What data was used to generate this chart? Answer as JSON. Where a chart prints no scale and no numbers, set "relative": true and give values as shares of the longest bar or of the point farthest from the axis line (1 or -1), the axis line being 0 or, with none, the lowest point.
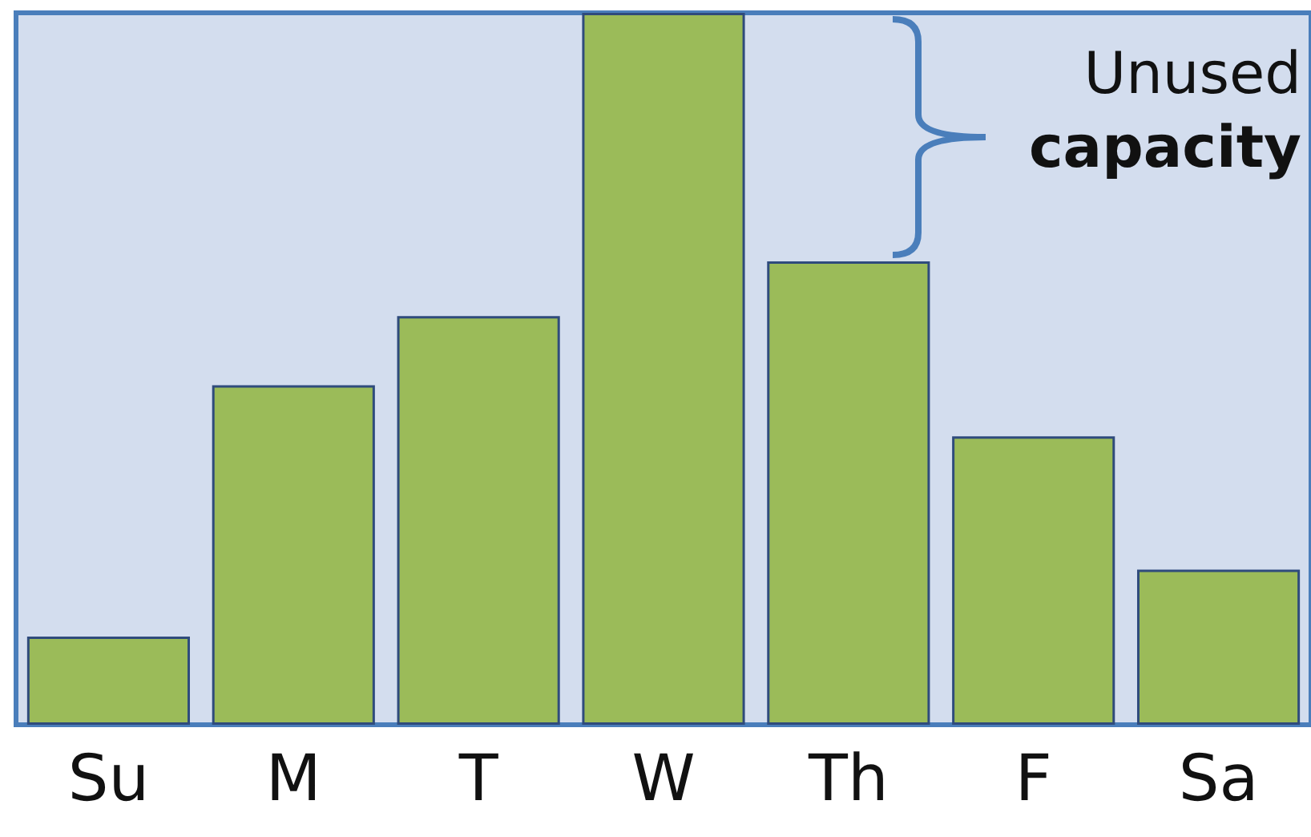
{
  "chart_data": {
    "type": "bar",
    "relative": true,
    "categories": [
      "Su",
      "M",
      "T",
      "W",
      "Th",
      "F",
      "Sa"
    ],
    "values": [
      0.124,
      0.477,
      0.574,
      1,
      0.651,
      0.405,
      0.218
    ],
    "color": "#9bbb59",
    "annotations": [
      "Unused capacity"
    ],
    "grid": false
  }
}
